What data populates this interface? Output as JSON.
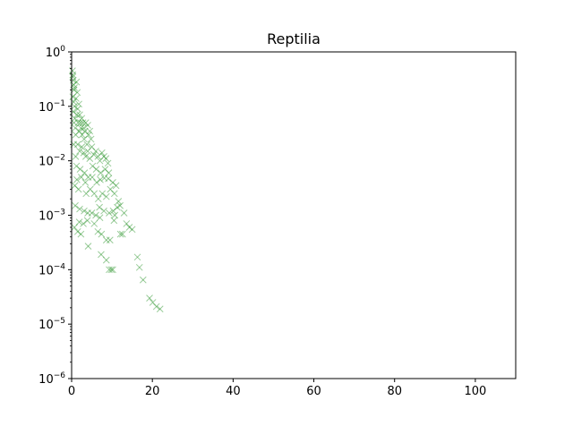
{
  "chart_data": {
    "type": "scatter",
    "title": "Reptilia",
    "xlabel": "",
    "ylabel": "",
    "xlim": [
      0,
      110
    ],
    "ylim": [
      1e-06,
      1
    ],
    "yscale": "log",
    "grid": false,
    "x_ticks": [
      0,
      20,
      40,
      60,
      80,
      100
    ],
    "y_ticks": [
      {
        "value": 1e-06,
        "base": "10",
        "exp": "−6"
      },
      {
        "value": 1e-05,
        "base": "10",
        "exp": "−5"
      },
      {
        "value": 0.0001,
        "base": "10",
        "exp": "−4"
      },
      {
        "value": 0.001,
        "base": "10",
        "exp": "−3"
      },
      {
        "value": 0.01,
        "base": "10",
        "exp": "−2"
      },
      {
        "value": 0.1,
        "base": "10",
        "exp": "−1"
      },
      {
        "value": 1,
        "base": "10",
        "exp": "0"
      }
    ],
    "series": [
      {
        "marker": "x",
        "color": "#008000",
        "alpha": 0.4,
        "points": [
          [
            0.2,
            0.45
          ],
          [
            0.3,
            0.38
          ],
          [
            0.4,
            0.3
          ],
          [
            0.5,
            0.25
          ],
          [
            0.6,
            0.2
          ],
          [
            0.3,
            0.15
          ],
          [
            0.5,
            0.12
          ],
          [
            0.7,
            0.1
          ],
          [
            0.4,
            0.08
          ],
          [
            0.8,
            0.06
          ],
          [
            0.6,
            0.05
          ],
          [
            0.9,
            0.04
          ],
          [
            1.0,
            0.03
          ],
          [
            0.5,
            0.02
          ],
          [
            0.3,
            0.35
          ],
          [
            0.7,
            0.22
          ],
          [
            1.2,
            0.28
          ],
          [
            1.4,
            0.18
          ],
          [
            1.1,
            0.14
          ],
          [
            1.5,
            0.09
          ],
          [
            1.3,
            0.07
          ],
          [
            1.8,
            0.11
          ],
          [
            1.6,
            0.05
          ],
          [
            2.0,
            0.07
          ],
          [
            2.2,
            0.05
          ],
          [
            1.9,
            0.035
          ],
          [
            2.5,
            0.06
          ],
          [
            2.3,
            0.04
          ],
          [
            2.8,
            0.05
          ],
          [
            3.0,
            0.04
          ],
          [
            2.6,
            0.03
          ],
          [
            3.3,
            0.035
          ],
          [
            3.5,
            0.05
          ],
          [
            3.1,
            0.025
          ],
          [
            4.0,
            0.045
          ],
          [
            4.2,
            0.03
          ],
          [
            3.8,
            0.02
          ],
          [
            4.5,
            0.035
          ],
          [
            4.8,
            0.025
          ],
          [
            1.0,
            0.012
          ],
          [
            1.5,
            0.02
          ],
          [
            2.0,
            0.015
          ],
          [
            2.5,
            0.018
          ],
          [
            3.0,
            0.014
          ],
          [
            3.5,
            0.012
          ],
          [
            4.0,
            0.015
          ],
          [
            4.5,
            0.011
          ],
          [
            5.0,
            0.018
          ],
          [
            5.5,
            0.013
          ],
          [
            6.0,
            0.015
          ],
          [
            6.5,
            0.012
          ],
          [
            7.0,
            0.01
          ],
          [
            7.5,
            0.014
          ],
          [
            8.0,
            0.012
          ],
          [
            8.5,
            0.011
          ],
          [
            9.0,
            0.009
          ],
          [
            5.2,
            0.008
          ],
          [
            6.1,
            0.007
          ],
          [
            7.2,
            0.006
          ],
          [
            8.3,
            0.007
          ],
          [
            9.2,
            0.006
          ],
          [
            1.2,
            0.008
          ],
          [
            2.1,
            0.007
          ],
          [
            3.2,
            0.006
          ],
          [
            4.1,
            0.005
          ],
          [
            5.1,
            0.005
          ],
          [
            6.2,
            0.004
          ],
          [
            7.1,
            0.0045
          ],
          [
            8.1,
            0.0048
          ],
          [
            9.1,
            0.0047
          ],
          [
            10.2,
            0.004
          ],
          [
            11.0,
            0.0035
          ],
          [
            1.3,
            0.0045
          ],
          [
            2.4,
            0.005
          ],
          [
            3.4,
            0.004
          ],
          [
            0.8,
            0.0035
          ],
          [
            1.7,
            0.003
          ],
          [
            3.6,
            0.0025
          ],
          [
            4.6,
            0.003
          ],
          [
            5.6,
            0.0025
          ],
          [
            6.6,
            0.002
          ],
          [
            7.6,
            0.0025
          ],
          [
            8.6,
            0.0022
          ],
          [
            9.6,
            0.003
          ],
          [
            10.6,
            0.0025
          ],
          [
            11.6,
            0.0018
          ],
          [
            12.0,
            0.0015
          ],
          [
            11.3,
            0.0014
          ],
          [
            10.3,
            0.0012
          ],
          [
            9.3,
            0.0011
          ],
          [
            10.7,
            0.001
          ],
          [
            10.5,
            0.0008
          ],
          [
            0.9,
            0.0015
          ],
          [
            2.0,
            0.0013
          ],
          [
            3.1,
            0.0012
          ],
          [
            4.0,
            0.0011
          ],
          [
            5.0,
            0.0011
          ],
          [
            6.0,
            0.001
          ],
          [
            7.0,
            0.0009
          ],
          [
            8.0,
            0.0012
          ],
          [
            6.9,
            0.0014
          ],
          [
            13.0,
            0.0011
          ],
          [
            13.6,
            0.0007
          ],
          [
            14.3,
            0.0006
          ],
          [
            15.0,
            0.00055
          ],
          [
            1.9,
            0.00075
          ],
          [
            2.9,
            0.0007
          ],
          [
            3.9,
            0.0008
          ],
          [
            0.7,
            0.0006
          ],
          [
            1.5,
            0.0005
          ],
          [
            2.3,
            0.00045
          ],
          [
            5.6,
            0.0007
          ],
          [
            6.5,
            0.0005
          ],
          [
            7.4,
            0.00045
          ],
          [
            8.6,
            0.00035
          ],
          [
            9.5,
            0.00035
          ],
          [
            4.1,
            0.00027
          ],
          [
            12.1,
            0.00045
          ],
          [
            12.6,
            0.00045
          ],
          [
            7.3,
            0.00019
          ],
          [
            8.6,
            0.00015
          ],
          [
            9.3,
            0.0001
          ],
          [
            9.8,
            0.0001
          ],
          [
            10.2,
            0.0001
          ],
          [
            16.3,
            0.00017
          ],
          [
            16.8,
            0.00011
          ],
          [
            17.7,
            6.5e-05
          ],
          [
            19.3,
            3e-05
          ],
          [
            20.1,
            2.5e-05
          ],
          [
            21.0,
            2.1e-05
          ],
          [
            21.9,
            1.9e-05
          ]
        ]
      }
    ]
  }
}
